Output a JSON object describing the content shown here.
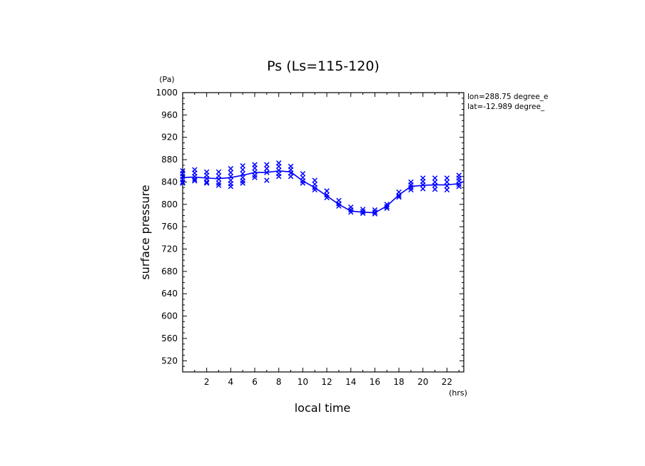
{
  "chart_data": {
    "type": "line",
    "title": "Ps (Ls=115-120)",
    "xlabel": "local time",
    "ylabel": "surface pressure",
    "xunit": "(hrs)",
    "yunit": "(Pa)",
    "xlim": [
      0,
      23.4
    ],
    "ylim": [
      500,
      1000
    ],
    "xticks": [
      2,
      4,
      6,
      8,
      10,
      12,
      14,
      16,
      18,
      20,
      22
    ],
    "yticks": [
      520,
      560,
      600,
      640,
      680,
      720,
      760,
      800,
      840,
      880,
      920,
      960,
      1000
    ],
    "annotations": [
      "lon=288.75 degree_e",
      "lat=-12.989 degree_"
    ],
    "grid": false,
    "color": "#0000ff",
    "series": [
      {
        "marker": "line",
        "x": [
          0,
          1,
          2,
          3,
          4,
          5,
          6,
          7,
          8,
          9,
          10,
          11,
          12,
          13,
          14,
          15,
          16,
          17,
          18,
          19,
          20,
          21,
          22,
          23,
          23.4
        ],
        "values": [
          848,
          849,
          847,
          846,
          848,
          852,
          857,
          857,
          860,
          858,
          842,
          830,
          815,
          800,
          788,
          786,
          785,
          797,
          817,
          832,
          834,
          835,
          835,
          837,
          841
        ]
      },
      {
        "marker": "x",
        "x": [
          0,
          0,
          0,
          0,
          0,
          0,
          1,
          1,
          1,
          1,
          1,
          2,
          2,
          2,
          2,
          2,
          3,
          3,
          3,
          3,
          3,
          4,
          4,
          4,
          4,
          4,
          4,
          5,
          5,
          5,
          5,
          5,
          5,
          6,
          6,
          6,
          6,
          6,
          7,
          7,
          7,
          7,
          8,
          8,
          8,
          8,
          8,
          9,
          9,
          9,
          9,
          10,
          10,
          10,
          10,
          11,
          11,
          11,
          11,
          12,
          12,
          12,
          13,
          13,
          13,
          14,
          14,
          14,
          15,
          15,
          15,
          16,
          16,
          16,
          17,
          17,
          17,
          18,
          18,
          18,
          19,
          19,
          19,
          19,
          20,
          20,
          20,
          20,
          21,
          21,
          21,
          21,
          22,
          22,
          22,
          22,
          23,
          23,
          23,
          23,
          23
        ],
        "values": [
          860,
          855,
          850,
          845,
          840,
          838,
          862,
          856,
          850,
          845,
          842,
          858,
          852,
          846,
          840,
          838,
          858,
          851,
          845,
          838,
          834,
          864,
          857,
          850,
          843,
          837,
          832,
          869,
          862,
          855,
          848,
          842,
          838,
          871,
          865,
          858,
          852,
          848,
          871,
          864,
          857,
          843,
          874,
          868,
          861,
          855,
          850,
          868,
          862,
          856,
          850,
          855,
          848,
          842,
          838,
          843,
          836,
          830,
          826,
          824,
          817,
          812,
          807,
          801,
          797,
          795,
          790,
          786,
          791,
          787,
          784,
          790,
          786,
          783,
          800,
          796,
          793,
          822,
          816,
          813,
          840,
          835,
          830,
          826,
          847,
          841,
          835,
          828,
          847,
          840,
          834,
          827,
          847,
          840,
          833,
          826,
          852,
          847,
          842,
          836,
          832
        ]
      }
    ]
  }
}
